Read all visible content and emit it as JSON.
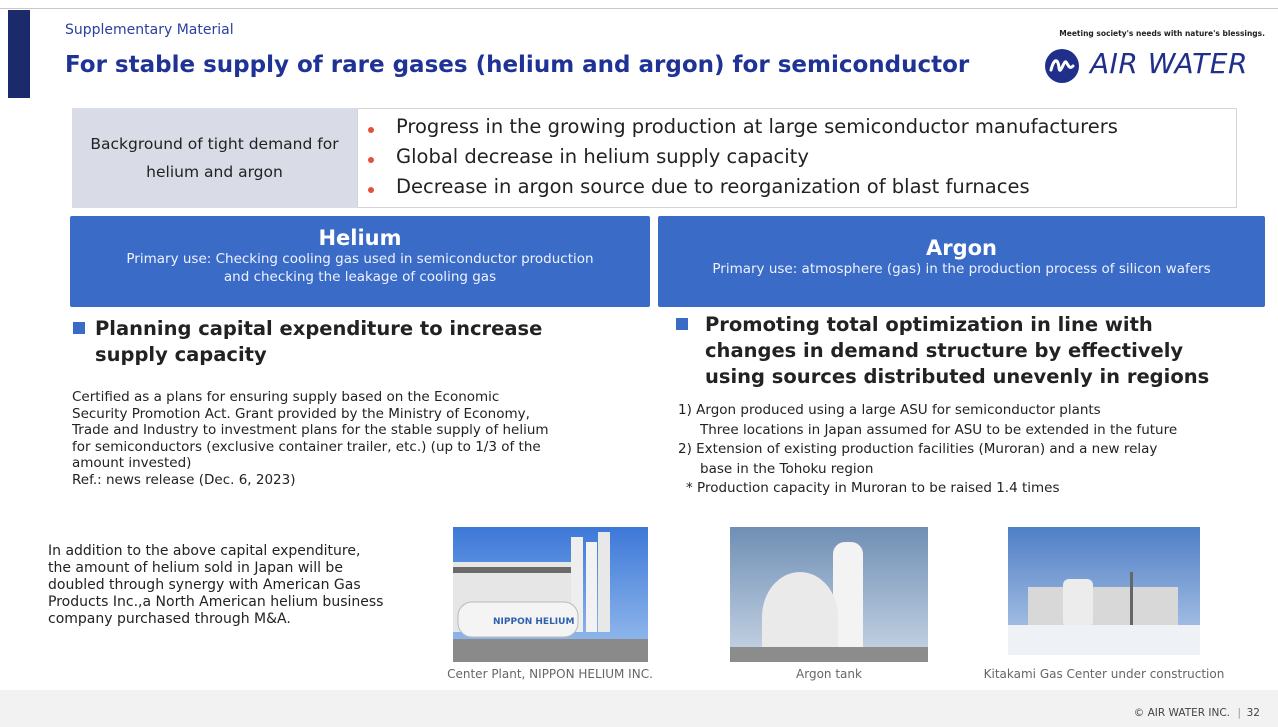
{
  "header": {
    "label": "Supplementary Material",
    "title": "For stable supply of rare gases (helium and argon) for semiconductor",
    "tagline": "Meeting society's needs with nature's blessings.",
    "logo_text": "AIR WATER"
  },
  "background": {
    "label": "Background of tight demand for helium and argon",
    "bullets": [
      "Progress in the growing production at large semiconductor manufacturers",
      "Global decrease in helium supply capacity",
      "Decrease in argon source due to reorganization of blast furnaces"
    ]
  },
  "helium": {
    "title": "Helium",
    "use": [
      "Primary use: Checking cooling gas used in semiconductor production",
      "and checking the leakage of cooling gas"
    ],
    "heading": [
      "Planning capital expenditure to increase",
      "supply capacity"
    ],
    "body": [
      "Certified as a plans for ensuring supply based on the Economic",
      "Security Promotion Act. Grant provided by the Ministry of Economy,",
      "Trade and Industry to investment plans for the stable supply of helium",
      "for semiconductors (exclusive container trailer, etc.) (up to 1/3 of the",
      "amount invested)",
      "Ref.: news release (Dec. 6, 2023)"
    ],
    "note": [
      "In addition to the above capital expenditure,",
      "the amount of helium sold in Japan will be",
      "doubled through synergy with American Gas",
      "Products Inc.,a North American helium business",
      "company purchased through M&A."
    ]
  },
  "argon": {
    "title": "Argon",
    "use": [
      "Primary use: atmosphere (gas) in the production process of silicon wafers"
    ],
    "heading": [
      "Promoting total optimization in line with",
      "changes in demand structure by effectively",
      "using sources distributed unevenly in regions"
    ],
    "items": [
      [
        "1) Argon produced using a large ASU for semiconductor plants",
        "Three locations in Japan assumed for ASU to be extended in the future"
      ],
      [
        "2) Extension of existing production facilities (Muroran) and a new relay",
        "base in the Tohoku region"
      ],
      [
        "* Production capacity in  Muroran to be raised 1.4 times"
      ]
    ]
  },
  "photos": [
    {
      "caption": "Center Plant, NIPPON HELIUM INC."
    },
    {
      "caption": "Argon tank"
    },
    {
      "caption": "Kitakami Gas Center under construction"
    }
  ],
  "footer": {
    "copyright": "© AIR WATER INC.",
    "page": "32"
  }
}
